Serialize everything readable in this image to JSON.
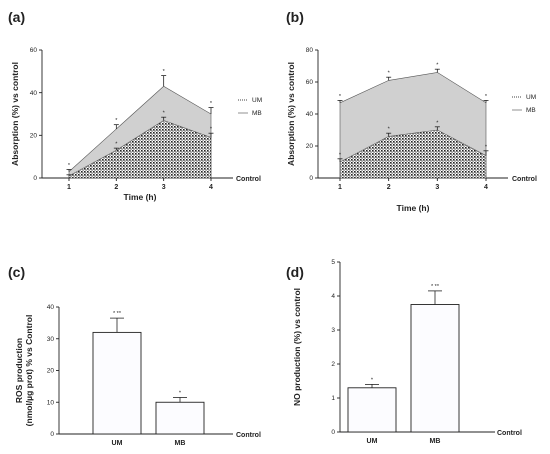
{
  "chart_data": [
    {
      "panel": "(a)",
      "type": "area",
      "x": [
        1,
        2,
        3,
        4
      ],
      "xlabel": "Time (h)",
      "ylabel": "Absorption (%) vs control",
      "control_label": "Control",
      "ylim": [
        0,
        60
      ],
      "yticks": [
        0,
        20,
        40,
        60
      ],
      "series": [
        {
          "name": "UM",
          "values": [
            1,
            13,
            27,
            19
          ],
          "errors": [
            0.5,
            1,
            1.5,
            2
          ],
          "fill": "#2b2b2b",
          "pattern": "dots"
        },
        {
          "name": "MB",
          "values": [
            3,
            23,
            43,
            30
          ],
          "errors": [
            1,
            2,
            5,
            3
          ],
          "fill": "#d0d0d0",
          "pattern": "solid"
        }
      ],
      "annotations": [
        {
          "x": 1,
          "value": 3,
          "text": "*"
        },
        {
          "x": 2,
          "value": 23,
          "text": "*"
        },
        {
          "x": 3,
          "value": 43,
          "text": "*"
        },
        {
          "x": 4,
          "value": 30,
          "text": "*"
        },
        {
          "x": 2,
          "value": 13,
          "text": "*"
        },
        {
          "x": 3,
          "value": 27,
          "text": "*"
        },
        {
          "x": 4,
          "value": 19,
          "text": "*"
        }
      ]
    },
    {
      "panel": "(b)",
      "type": "area",
      "x": [
        1,
        2,
        3,
        4
      ],
      "xlabel": "Time (h)",
      "ylabel": "Absorption (%) vs control",
      "control_label": "Control",
      "ylim": [
        0,
        80
      ],
      "yticks": [
        0,
        20,
        40,
        60,
        80
      ],
      "series": [
        {
          "name": "UM",
          "values": [
            10,
            26,
            30,
            14
          ],
          "errors": [
            2,
            2,
            2,
            3
          ],
          "fill": "#2b2b2b",
          "pattern": "dots"
        },
        {
          "name": "MB",
          "values": [
            47,
            61,
            66,
            47
          ],
          "errors": [
            1.5,
            2,
            2,
            1.5
          ],
          "fill": "#d0d0d0",
          "pattern": "solid"
        }
      ],
      "annotations": [
        {
          "x": 1,
          "value": 47,
          "text": "*"
        },
        {
          "x": 2,
          "value": 61,
          "text": "*"
        },
        {
          "x": 3,
          "value": 66,
          "text": "*"
        },
        {
          "x": 4,
          "value": 47,
          "text": "*"
        },
        {
          "x": 1,
          "value": 10,
          "text": "*"
        },
        {
          "x": 2,
          "value": 26,
          "text": "*"
        },
        {
          "x": 3,
          "value": 30,
          "text": "*"
        },
        {
          "x": 4,
          "value": 14,
          "text": "*"
        }
      ]
    },
    {
      "panel": "(c)",
      "type": "bar",
      "categories": [
        "UM",
        "MB"
      ],
      "values": [
        32,
        10
      ],
      "errors": [
        4.5,
        1.5
      ],
      "annotations": [
        "* **",
        "*"
      ],
      "ylabel": "ROS production (nmol/µg prot) % vs Control",
      "control_label": "Control",
      "ylim": [
        0,
        40
      ],
      "yticks": [
        0,
        10,
        20,
        30,
        40
      ]
    },
    {
      "panel": "(d)",
      "type": "bar",
      "categories": [
        "UM",
        "MB"
      ],
      "values": [
        1.3,
        3.75
      ],
      "errors": [
        0.1,
        0.4
      ],
      "annotations": [
        "*",
        "* **"
      ],
      "ylabel": "NO production (%) vs control",
      "control_label": "Control",
      "ylim": [
        0,
        5
      ],
      "yticks": [
        0,
        1,
        2,
        3,
        4,
        5
      ]
    }
  ]
}
